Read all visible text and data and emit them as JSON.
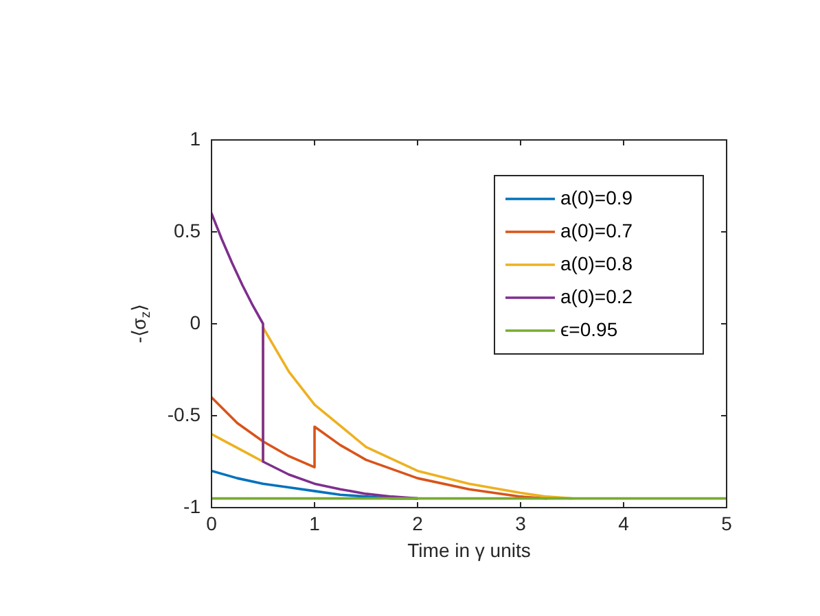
{
  "chart_data": {
    "type": "line",
    "xlabel": "Time in γ units",
    "ylabel": "-⟨σ$_{z}$⟩",
    "xlim": [
      0,
      5
    ],
    "ylim": [
      -1,
      1
    ],
    "xticks": [
      0,
      1,
      2,
      3,
      4,
      5
    ],
    "yticks": [
      -1,
      -0.5,
      0,
      0.5,
      1
    ],
    "grid": false,
    "legend": "top right",
    "marker": "none",
    "line_style": "solid",
    "series": [
      {
        "name": "a(0)=0.9",
        "color": "#0072bd",
        "x": [
          0,
          0.25,
          0.5,
          0.75,
          1,
          1.25,
          1.5,
          1.75,
          2
        ],
        "values": [
          -0.8,
          -0.84,
          -0.87,
          -0.89,
          -0.91,
          -0.93,
          -0.94,
          -0.95,
          -0.95
        ]
      },
      {
        "name": "a(0)=0.7",
        "color": "#d95319",
        "x": [
          0,
          0.25,
          0.5,
          0.75,
          1,
          1,
          1.25,
          1.5,
          2,
          2.5,
          3,
          3.25
        ],
        "values": [
          -0.4,
          -0.54,
          -0.64,
          -0.72,
          -0.78,
          -0.56,
          -0.66,
          -0.74,
          -0.84,
          -0.9,
          -0.94,
          -0.95
        ]
      },
      {
        "name": "a(0)=0.8",
        "color": "#edb120",
        "x": [
          0,
          0.1,
          0.2,
          0.3,
          0.4,
          0.5,
          0.5,
          0.75,
          1,
          1.5,
          2,
          2.5,
          3,
          3.25,
          3.5
        ],
        "values": [
          -0.6,
          -0.63,
          -0.66,
          -0.69,
          -0.72,
          -0.75,
          -0.02,
          -0.26,
          -0.44,
          -0.67,
          -0.8,
          -0.87,
          -0.92,
          -0.94,
          -0.95
        ]
      },
      {
        "name": "a(0)=0.2",
        "color": "#7e2f8e",
        "x": [
          0,
          0.1,
          0.2,
          0.3,
          0.4,
          0.5,
          0.5,
          0.75,
          1,
          1.25,
          1.5,
          1.75,
          2
        ],
        "values": [
          0.6,
          0.46,
          0.33,
          0.21,
          0.1,
          0,
          -0.75,
          -0.82,
          -0.87,
          -0.9,
          -0.925,
          -0.94,
          -0.95
        ]
      },
      {
        "name": "ϵ=0.95",
        "color": "#77ac30",
        "x": [
          0,
          5
        ],
        "values": [
          -0.95,
          -0.95
        ]
      }
    ]
  }
}
